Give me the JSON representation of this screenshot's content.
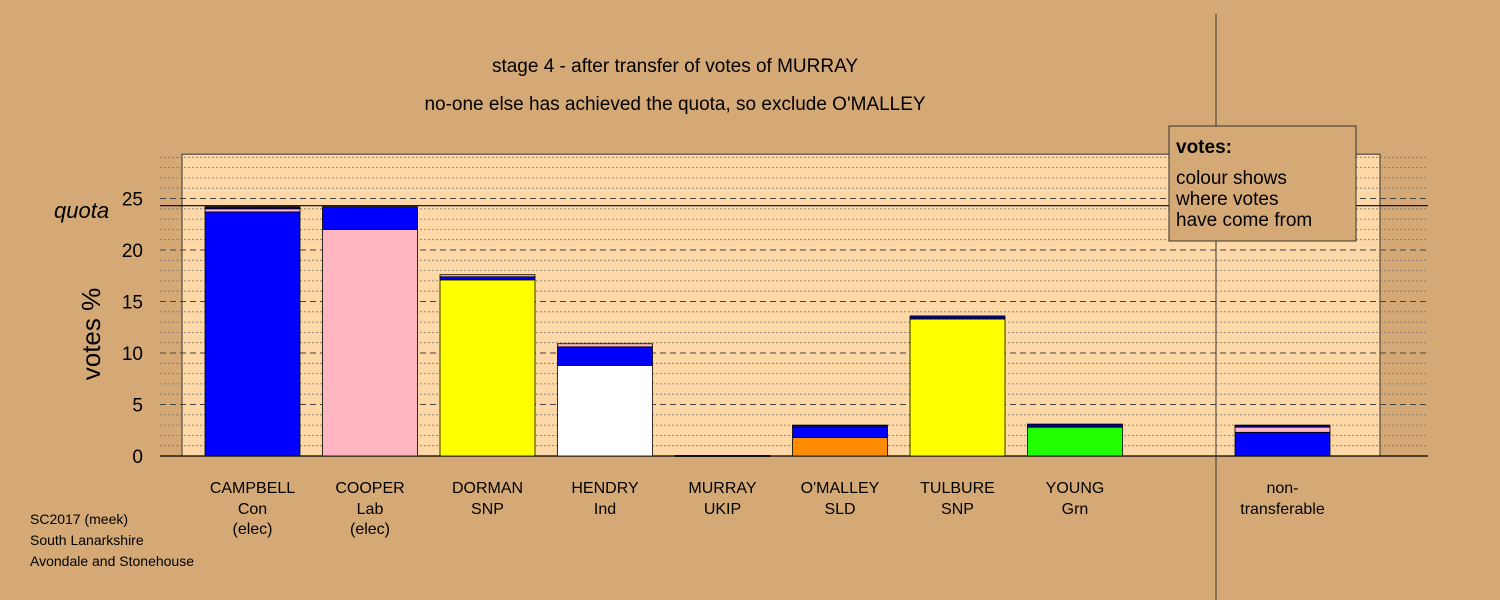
{
  "chart_data": {
    "type": "bar",
    "stacked": true,
    "title": "stage 4 - after transfer of votes of MURRAY",
    "subtitle": "no-one else has achieved the quota, so exclude O'MALLEY",
    "ylabel": "votes %",
    "ylim": [
      0,
      29.3
    ],
    "yticks": [
      0,
      5,
      10,
      15,
      20,
      25
    ],
    "quota": 24.3,
    "quota_label": "quota",
    "grid": true,
    "candidates": [
      {
        "name": "CAMPBELL",
        "party": "Con",
        "status": "(elec)",
        "segments": [
          {
            "value": 23.7,
            "color": "#0000ff"
          },
          {
            "value": 0.3,
            "color": "#ffb6c1"
          },
          {
            "value": 0.2,
            "color": "#00008b"
          }
        ]
      },
      {
        "name": "COOPER",
        "party": "Lab",
        "status": "(elec)",
        "segments": [
          {
            "value": 22.0,
            "color": "#ffb6c1"
          },
          {
            "value": 2.2,
            "color": "#0000ff"
          }
        ]
      },
      {
        "name": "DORMAN",
        "party": "SNP",
        "status": "",
        "segments": [
          {
            "value": 17.1,
            "color": "#ffff00"
          },
          {
            "value": 0.3,
            "color": "#0000ff"
          },
          {
            "value": 0.2,
            "color": "#ffb6c1"
          }
        ]
      },
      {
        "name": "HENDRY",
        "party": "Ind",
        "status": "",
        "segments": [
          {
            "value": 8.8,
            "color": "#ffffff"
          },
          {
            "value": 1.8,
            "color": "#0000ff"
          },
          {
            "value": 0.3,
            "color": "#ffb6c1"
          }
        ]
      },
      {
        "name": "MURRAY",
        "party": "UKIP",
        "status": "",
        "segments": [
          {
            "value": 0.05,
            "color": "#00008b"
          }
        ]
      },
      {
        "name": "O'MALLEY",
        "party": "SLD",
        "status": "",
        "segments": [
          {
            "value": 1.8,
            "color": "#ff8c00"
          },
          {
            "value": 1.0,
            "color": "#0000ff"
          },
          {
            "value": 0.2,
            "color": "#00008b"
          }
        ]
      },
      {
        "name": "TULBURE",
        "party": "SNP",
        "status": "",
        "segments": [
          {
            "value": 13.3,
            "color": "#ffff00"
          },
          {
            "value": 0.3,
            "color": "#00008b"
          }
        ]
      },
      {
        "name": "YOUNG",
        "party": "Grn",
        "status": "",
        "segments": [
          {
            "value": 2.8,
            "color": "#22ff00"
          },
          {
            "value": 0.3,
            "color": "#00008b"
          }
        ]
      }
    ],
    "nontransferable": {
      "label_line1": "non-",
      "label_line2": "transferable",
      "segments": [
        {
          "value": 2.3,
          "color": "#0000ff"
        },
        {
          "value": 0.5,
          "color": "#ffb6c1"
        },
        {
          "value": 0.2,
          "color": "#00008b"
        }
      ]
    },
    "legend": {
      "placement": "top-right",
      "heading": "votes:",
      "lines": [
        "colour shows",
        "where votes",
        "have come from"
      ]
    }
  },
  "credits": [
    "SC2017 (meek)",
    "South Lanarkshire",
    "Avondale and Stonehouse"
  ],
  "colors": {
    "background": "#d4a976",
    "plot_area": "#ffd8a8"
  }
}
